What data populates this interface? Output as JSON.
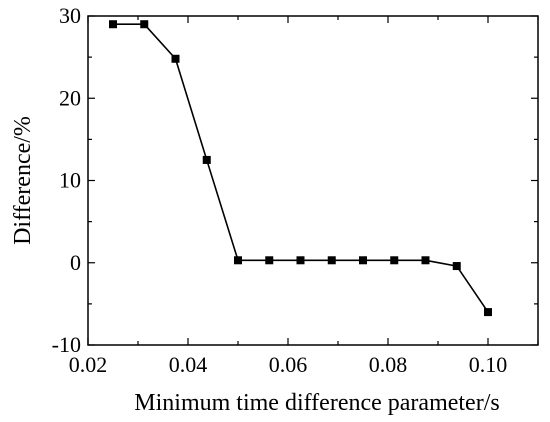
{
  "chart_data": {
    "type": "line",
    "title": "",
    "xlabel": "Minimum time difference parameter/s",
    "ylabel": "Difference/%",
    "xlim": [
      0.02,
      0.11
    ],
    "ylim": [
      -10,
      30
    ],
    "xticks": [
      0.02,
      0.04,
      0.06,
      0.08,
      0.1
    ],
    "xtick_labels": [
      "0.02",
      "0.04",
      "0.06",
      "0.08",
      "0.10"
    ],
    "yticks": [
      -10,
      0,
      10,
      20,
      30
    ],
    "ytick_labels": [
      "-10",
      "0",
      "10",
      "20",
      "30"
    ],
    "grid": false,
    "legend": false,
    "marker": "square",
    "series": [
      {
        "color": "#000000",
        "x": [
          0.025,
          0.03125,
          0.0375,
          0.04375,
          0.05,
          0.05625,
          0.0625,
          0.06875,
          0.075,
          0.08125,
          0.0875,
          0.09375,
          0.1
        ],
        "y": [
          29.0,
          29.0,
          24.8,
          12.5,
          0.3,
          0.3,
          0.3,
          0.3,
          0.3,
          0.3,
          0.3,
          -0.4,
          -6.0
        ]
      }
    ]
  }
}
